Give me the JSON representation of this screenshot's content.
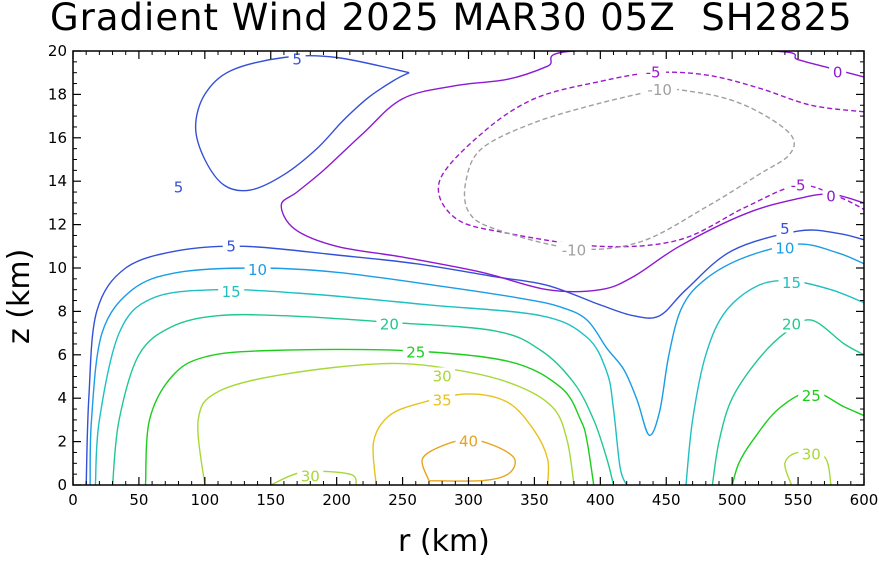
{
  "chart_data": {
    "type": "contour",
    "title": "Gradient Wind 2025 MAR30 05Z  SH2825",
    "xlabel": "r (km)",
    "ylabel": "z (km)",
    "xlim": [
      0,
      600
    ],
    "ylim": [
      0,
      20
    ],
    "xticks": [
      0,
      50,
      100,
      150,
      200,
      250,
      300,
      350,
      400,
      450,
      500,
      550,
      600
    ],
    "yticks": [
      0,
      2,
      4,
      6,
      8,
      10,
      12,
      14,
      16,
      18,
      20
    ],
    "grid": false,
    "contour_levels": [
      {
        "level": 40,
        "label": "40",
        "color": "#e6a320",
        "dashed": false,
        "lines": [
          [
            [
              270,
              0.2
            ],
            [
              265,
              1.2
            ],
            [
              280,
              1.8
            ],
            [
              300,
              2.1
            ],
            [
              320,
              1.8
            ],
            [
              335,
              1.2
            ],
            [
              330,
              0.5
            ],
            [
              310,
              0.2
            ],
            [
              270,
              0.2
            ]
          ]
        ],
        "labels": [
          {
            "text": "40",
            "x": 300,
            "y": 2.0
          }
        ]
      },
      {
        "level": 35,
        "label": "35",
        "color": "#e6c21e",
        "dashed": false,
        "lines": [
          [
            [
              230,
              0
            ],
            [
              228,
              2
            ],
            [
              240,
              3.2
            ],
            [
              265,
              3.8
            ],
            [
              300,
              4.2
            ],
            [
              330,
              3.8
            ],
            [
              350,
              2.5
            ],
            [
              360,
              1.2
            ],
            [
              360,
              0
            ]
          ]
        ],
        "labels": [
          {
            "text": "35",
            "x": 280,
            "y": 3.9
          }
        ]
      },
      {
        "level": 30,
        "label": "30",
        "color": "#a8d838",
        "dashed": false,
        "lines": [
          [
            [
              100,
              0
            ],
            [
              95,
              3
            ],
            [
              110,
              4.3
            ],
            [
              160,
              5.1
            ],
            [
              240,
              5.6
            ],
            [
              300,
              5.2
            ],
            [
              340,
              4.5
            ],
            [
              365,
              3.5
            ],
            [
              375,
              2
            ],
            [
              380,
              0
            ]
          ],
          [
            [
              150,
              0
            ],
            [
              175,
              0.6
            ],
            [
              210,
              0.5
            ],
            [
              215,
              0
            ]
          ],
          [
            [
              545,
              0
            ],
            [
              540,
              1
            ],
            [
              550,
              1.5
            ],
            [
              570,
              1.3
            ],
            [
              575,
              0
            ]
          ]
        ],
        "labels": [
          {
            "text": "30",
            "x": 280,
            "y": 5.0
          },
          {
            "text": "30",
            "x": 180,
            "y": 0.4
          },
          {
            "text": "30",
            "x": 560,
            "y": 1.4
          }
        ]
      },
      {
        "level": 25,
        "label": "25",
        "color": "#1ccd1c",
        "dashed": false,
        "lines": [
          [
            [
              55,
              0
            ],
            [
              58,
              3
            ],
            [
              75,
              5
            ],
            [
              100,
              5.9
            ],
            [
              150,
              6.2
            ],
            [
              250,
              6.2
            ],
            [
              330,
              5.7
            ],
            [
              370,
              4.5
            ],
            [
              385,
              3
            ],
            [
              390,
              2
            ],
            [
              395,
              0
            ]
          ],
          [
            [
              500,
              0
            ],
            [
              505,
              1
            ],
            [
              515,
              2
            ],
            [
              535,
              3.5
            ],
            [
              560,
              4.3
            ],
            [
              585,
              3.6
            ],
            [
              600,
              3.2
            ]
          ]
        ],
        "labels": [
          {
            "text": "25",
            "x": 260,
            "y": 6.1
          },
          {
            "text": "25",
            "x": 560,
            "y": 4.1
          }
        ]
      },
      {
        "level": 20,
        "label": "20",
        "color": "#20c890",
        "dashed": false,
        "lines": [
          [
            [
              30,
              0
            ],
            [
              35,
              3
            ],
            [
              50,
              6
            ],
            [
              75,
              7.3
            ],
            [
              110,
              7.8
            ],
            [
              160,
              7.8
            ],
            [
              240,
              7.5
            ],
            [
              320,
              7.1
            ],
            [
              355,
              6.2
            ],
            [
              380,
              4.7
            ],
            [
              395,
              3
            ],
            [
              405,
              1.2
            ],
            [
              410,
              0
            ]
          ],
          [
            [
              485,
              0
            ],
            [
              490,
              2
            ],
            [
              500,
              4
            ],
            [
              520,
              5.8
            ],
            [
              540,
              7
            ],
            [
              560,
              7.6
            ],
            [
              585,
              6.5
            ],
            [
              600,
              6
            ]
          ]
        ],
        "labels": [
          {
            "text": "20",
            "x": 240,
            "y": 7.4
          },
          {
            "text": "20",
            "x": 545,
            "y": 7.4
          }
        ]
      },
      {
        "level": 15,
        "label": "15",
        "color": "#20c0c0",
        "dashed": false,
        "lines": [
          [
            [
              17,
              0
            ],
            [
              20,
              3
            ],
            [
              35,
              7
            ],
            [
              60,
              8.6
            ],
            [
              110,
              9.0
            ],
            [
              180,
              8.8
            ],
            [
              270,
              8.3
            ],
            [
              355,
              7.8
            ],
            [
              390,
              6.8
            ],
            [
              405,
              5.2
            ],
            [
              410,
              3.5
            ],
            [
              415,
              0.8
            ],
            [
              420,
              0
            ]
          ],
          [
            [
              465,
              0
            ],
            [
              470,
              3
            ],
            [
              480,
              6
            ],
            [
              495,
              8.0
            ],
            [
              520,
              9.2
            ],
            [
              545,
              9.4
            ],
            [
              575,
              9.0
            ],
            [
              600,
              8.4
            ]
          ]
        ],
        "labels": [
          {
            "text": "15",
            "x": 120,
            "y": 8.9
          },
          {
            "text": "15",
            "x": 545,
            "y": 9.3
          }
        ]
      },
      {
        "level": 10,
        "label": "10",
        "color": "#1a9ce6",
        "dashed": false,
        "lines": [
          [
            [
              13,
              0
            ],
            [
              14,
              3
            ],
            [
              22,
              7
            ],
            [
              45,
              9
            ],
            [
              80,
              9.8
            ],
            [
              140,
              10.0
            ],
            [
              200,
              9.8
            ],
            [
              275,
              9.2
            ],
            [
              340,
              8.6
            ],
            [
              370,
              8.2
            ],
            [
              390,
              7.6
            ],
            [
              405,
              6.3
            ],
            [
              418,
              5.3
            ],
            [
              428,
              3.9
            ],
            [
              437,
              2.3
            ],
            [
              445,
              3.4
            ],
            [
              452,
              6
            ],
            [
              462,
              8.2
            ],
            [
              480,
              9.5
            ],
            [
              510,
              10.5
            ],
            [
              550,
              11.1
            ],
            [
              580,
              10.7
            ],
            [
              600,
              10.2
            ]
          ]
        ],
        "labels": [
          {
            "text": "10",
            "x": 140,
            "y": 9.9
          },
          {
            "text": "10",
            "x": 540,
            "y": 10.9
          }
        ]
      },
      {
        "level": 5,
        "label": "5",
        "color": "#3550d8",
        "dashed": false,
        "lines": [
          [
            [
              10,
              0
            ],
            [
              12,
              4
            ],
            [
              18,
              8
            ],
            [
              40,
              10
            ],
            [
              80,
              10.8
            ],
            [
              130,
              11.0
            ],
            [
              200,
              10.6
            ],
            [
              260,
              10.2
            ],
            [
              320,
              9.6
            ],
            [
              360,
              9.2
            ],
            [
              400,
              8.3
            ],
            [
              425,
              7.8
            ],
            [
              445,
              7.8
            ],
            [
              465,
              9
            ],
            [
              500,
              10.8
            ],
            [
              550,
              11.7
            ],
            [
              580,
              11.6
            ],
            [
              600,
              11.3
            ]
          ],
          [
            [
              255,
              19.0
            ],
            [
              200,
              19.7
            ],
            [
              160,
              19.7
            ],
            [
              120,
              19.1
            ],
            [
              100,
              18.0
            ],
            [
              93,
              16.5
            ],
            [
              100,
              15.0
            ],
            [
              115,
              13.8
            ],
            [
              135,
              13.6
            ],
            [
              160,
              14.3
            ],
            [
              185,
              15.5
            ],
            [
              205,
              16.8
            ],
            [
              225,
              17.9
            ],
            [
              245,
              18.7
            ],
            [
              255,
              19.0
            ]
          ]
        ],
        "labels": [
          {
            "text": "5",
            "x": 120,
            "y": 11.0
          },
          {
            "text": "5",
            "x": 170,
            "y": 19.6
          },
          {
            "text": "5",
            "x": 80,
            "y": 13.7
          },
          {
            "text": "5",
            "x": 540,
            "y": 11.8
          }
        ]
      },
      {
        "level": 0,
        "label": "0",
        "color": "#8c1ad2",
        "dashed": false,
        "lines": [
          [
            [
              600,
              18.8
            ],
            [
              575,
              19.2
            ],
            [
              550,
              19.6
            ],
            [
              530,
              20
            ],
            [
              380,
              20
            ],
            [
              360,
              19.3
            ],
            [
              330,
              18.7
            ],
            [
              290,
              18.4
            ],
            [
              250,
              17.8
            ],
            [
              220,
              16.2
            ],
            [
              190,
              14.5
            ],
            [
              170,
              13.5
            ],
            [
              158,
              12.9
            ],
            [
              168,
              11.8
            ],
            [
              200,
              11.0
            ],
            [
              250,
              10.5
            ],
            [
              310,
              9.8
            ],
            [
              360,
              9.0
            ],
            [
              400,
              9.0
            ],
            [
              425,
              9.6
            ],
            [
              460,
              11.0
            ],
            [
              510,
              12.5
            ],
            [
              550,
              13.2
            ],
            [
              575,
              13.4
            ],
            [
              600,
              13.0
            ]
          ]
        ],
        "labels": [
          {
            "text": "0",
            "x": 575,
            "y": 13.3
          },
          {
            "text": "0",
            "x": 580,
            "y": 19.0
          }
        ]
      },
      {
        "level": -5,
        "label": "-5",
        "color": "#9c1acb",
        "dashed": true,
        "lines": [
          [
            [
              600,
              17.2
            ],
            [
              560,
              17.5
            ],
            [
              520,
              18.3
            ],
            [
              480,
              18.9
            ],
            [
              440,
              19.0
            ],
            [
              400,
              18.6
            ],
            [
              350,
              17.8
            ],
            [
              310,
              16.2
            ],
            [
              278,
              14.0
            ],
            [
              290,
              12.3
            ],
            [
              330,
              11.6
            ],
            [
              400,
              11.0
            ],
            [
              460,
              11.3
            ],
            [
              510,
              12.8
            ],
            [
              550,
              13.8
            ],
            [
              580,
              13.3
            ],
            [
              600,
              12.7
            ]
          ]
        ],
        "labels": [
          {
            "text": "-5",
            "x": 440,
            "y": 19.0
          },
          {
            "text": "-5",
            "x": 550,
            "y": 13.8
          }
        ]
      },
      {
        "level": -10,
        "label": "-10",
        "color": "#a0a0a0",
        "dashed": true,
        "lines": [
          [
            [
              450,
              18.3
            ],
            [
              490,
              17.9
            ],
            [
              520,
              17.2
            ],
            [
              545,
              16.1
            ],
            [
              543,
              15.2
            ],
            [
              520,
              14.3
            ],
            [
              480,
              12.8
            ],
            [
              430,
              11.2
            ],
            [
              380,
              10.9
            ],
            [
              320,
              11.8
            ],
            [
              300,
              12.6
            ],
            [
              298,
              14.0
            ],
            [
              310,
              15.5
            ],
            [
              350,
              16.7
            ],
            [
              400,
              17.6
            ],
            [
              450,
              18.3
            ]
          ]
        ],
        "labels": [
          {
            "text": "-10",
            "x": 445,
            "y": 18.2
          },
          {
            "text": "-10",
            "x": 380,
            "y": 10.8
          }
        ]
      }
    ]
  }
}
